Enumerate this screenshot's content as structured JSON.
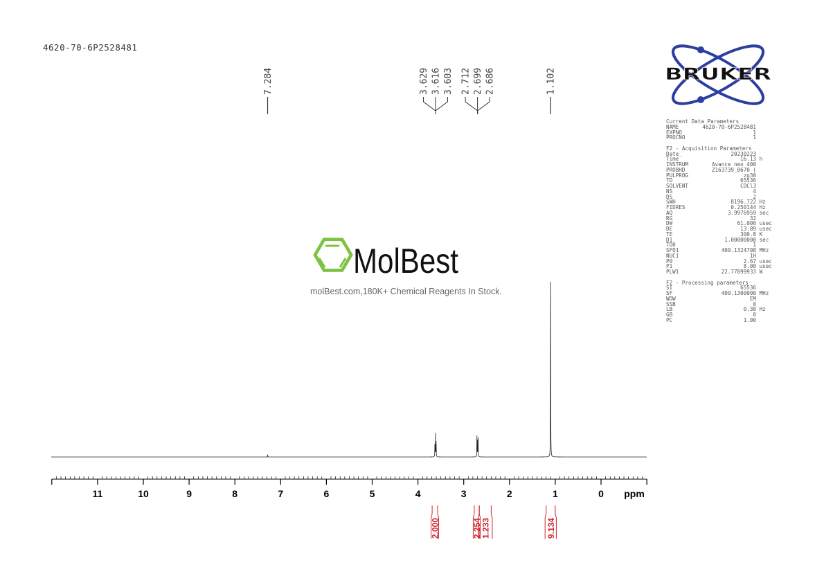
{
  "title": "4620-70-6P2528481",
  "watermark": {
    "brand": "MolBest",
    "tagline": "molBest.com,180K+ Chemical Reagents In Stock.",
    "color": "#7dc242"
  },
  "logo": {
    "text": "BRUKER",
    "color": "#2c3f9e"
  },
  "params": {
    "sections": [
      {
        "heading": "Current Data Parameters",
        "rows": [
          [
            "NAME",
            "4620-70-6P2528481",
            ""
          ],
          [
            "EXPNO",
            "1",
            ""
          ],
          [
            "PROCNO",
            "1",
            ""
          ]
        ]
      },
      {
        "heading": "F2 - Acquisition Parameters",
        "rows": [
          [
            "Date_",
            "20230223",
            ""
          ],
          [
            "Time",
            "16.13",
            "h"
          ],
          [
            "INSTRUM",
            "Avance neo 400",
            ""
          ],
          [
            "PROBHD",
            "Z163739_0670 (",
            ""
          ],
          [
            "PULPROG",
            "zg30",
            ""
          ],
          [
            "TD",
            "65536",
            ""
          ],
          [
            "SOLVENT",
            "CDCl3",
            ""
          ],
          [
            "NS",
            "4",
            ""
          ],
          [
            "DS",
            "2",
            ""
          ],
          [
            "SWH",
            "8196.722",
            "Hz"
          ],
          [
            "FIDRES",
            "0.250144",
            "Hz"
          ],
          [
            "AQ",
            "3.9976959",
            "sec"
          ],
          [
            "RG",
            "32",
            ""
          ],
          [
            "DW",
            "61.000",
            "usec"
          ],
          [
            "DE",
            "13.89",
            "usec"
          ],
          [
            "TE",
            "300.8",
            "K"
          ],
          [
            "D1",
            "1.00000000",
            "sec"
          ],
          [
            "TD0",
            "1",
            ""
          ],
          [
            "SFO1",
            "400.1324708",
            "MHz"
          ],
          [
            "NUC1",
            "1H",
            ""
          ],
          [
            "P0",
            "2.67",
            "usec"
          ],
          [
            "P1",
            "8.00",
            "usec"
          ],
          [
            "PLW1",
            "22.77899933",
            "W"
          ]
        ]
      },
      {
        "heading": "F2 - Processing parameters",
        "rows": [
          [
            "SI",
            "65536",
            ""
          ],
          [
            "SF",
            "400.1300000",
            "MHz"
          ],
          [
            "WDW",
            "EM",
            ""
          ],
          [
            "SSB",
            "0",
            ""
          ],
          [
            "LB",
            "0.30",
            "Hz"
          ],
          [
            "GB",
            "0",
            ""
          ],
          [
            "PC",
            "1.00",
            ""
          ]
        ]
      }
    ]
  },
  "chart_data": {
    "type": "line",
    "xlabel": "ppm",
    "xlim": [
      12,
      -1
    ],
    "x_reversed": true,
    "xticks": [
      "11",
      "10",
      "9",
      "8",
      "7",
      "6",
      "5",
      "4",
      "3",
      "2",
      "1",
      "0"
    ],
    "peaks": [
      {
        "ppm": 7.284,
        "rel_intensity": 0.01
      },
      {
        "ppm": 3.629,
        "rel_intensity": 0.085
      },
      {
        "ppm": 3.616,
        "rel_intensity": 0.095
      },
      {
        "ppm": 3.603,
        "rel_intensity": 0.085
      },
      {
        "ppm": 2.712,
        "rel_intensity": 0.085
      },
      {
        "ppm": 2.699,
        "rel_intensity": 0.095
      },
      {
        "ppm": 2.686,
        "rel_intensity": 0.085
      },
      {
        "ppm": 1.102,
        "rel_intensity": 1.0
      }
    ],
    "peak_labels": [
      {
        "group": [
          "7.284"
        ],
        "center": 7.284
      },
      {
        "group": [
          "3.629",
          "3.616",
          "3.603"
        ],
        "center": 3.616
      },
      {
        "group": [
          "2.712",
          "2.699",
          "2.686"
        ],
        "center": 2.699
      },
      {
        "group": [
          "1.102"
        ],
        "center": 1.102
      }
    ],
    "integrals": [
      {
        "from": 3.69,
        "to": 3.57,
        "value": "2.000"
      },
      {
        "from": 2.77,
        "to": 2.66,
        "value": "2.254"
      },
      {
        "from": 2.66,
        "to": 2.4,
        "value": "1.233"
      },
      {
        "from": 1.2,
        "to": 1.0,
        "value": "9.134"
      }
    ],
    "integral_color": "#d0202a"
  }
}
